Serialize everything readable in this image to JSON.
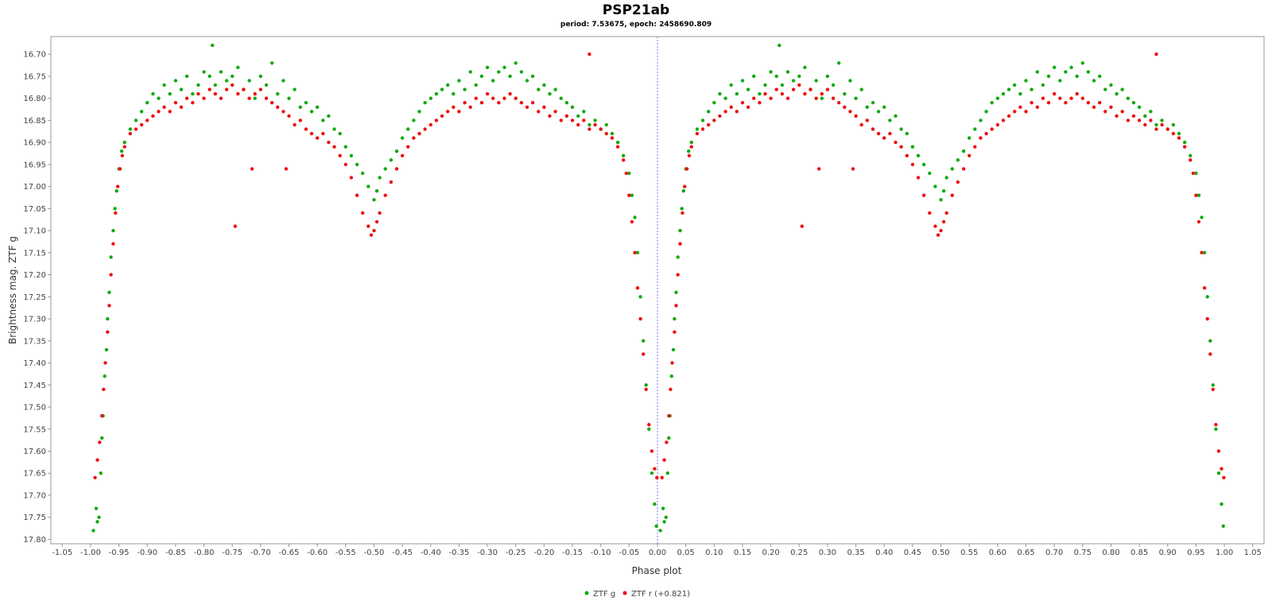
{
  "chart_data": {
    "type": "scatter",
    "title": "PSP21ab",
    "subtitle": "period: 7.53675, epoch: 2458690.809",
    "xlabel": "Phase plot",
    "ylabel": "Brightness mag. ZTF g",
    "xlim": [
      -1.07,
      1.07
    ],
    "ylim": [
      17.81,
      16.66
    ],
    "y_inverted": true,
    "x_ticks": [
      "-1.05",
      "-1.00",
      "-0.95",
      "-0.90",
      "-0.85",
      "-0.80",
      "-0.75",
      "-0.70",
      "-0.65",
      "-0.60",
      "-0.55",
      "-0.50",
      "-0.45",
      "-0.40",
      "-0.35",
      "-0.30",
      "-0.25",
      "-0.20",
      "-0.15",
      "-0.10",
      "-0.05",
      "0.00",
      "0.05",
      "0.10",
      "0.15",
      "0.20",
      "0.25",
      "0.30",
      "0.35",
      "0.40",
      "0.45",
      "0.50",
      "0.55",
      "0.60",
      "0.65",
      "0.70",
      "0.75",
      "0.80",
      "0.85",
      "0.90",
      "0.95",
      "1.00",
      "1.05"
    ],
    "y_ticks": [
      "16.70",
      "16.75",
      "16.80",
      "16.85",
      "16.90",
      "16.95",
      "17.00",
      "17.05",
      "17.10",
      "17.15",
      "17.20",
      "17.25",
      "17.30",
      "17.35",
      "17.40",
      "17.45",
      "17.50",
      "17.55",
      "17.60",
      "17.65",
      "17.70",
      "17.75",
      "17.80"
    ],
    "reference_line_x": 0.0,
    "grid": false,
    "legend_position": "bottom-center",
    "series": [
      {
        "name": "ZTF g",
        "color": "#11aa11",
        "phase_half": [
          [
            0.005,
            17.78
          ],
          [
            0.01,
            17.73
          ],
          [
            0.012,
            17.76
          ],
          [
            0.015,
            17.75
          ],
          [
            0.018,
            17.65
          ],
          [
            0.02,
            17.57
          ],
          [
            0.022,
            17.52
          ],
          [
            0.025,
            17.43
          ],
          [
            0.028,
            17.37
          ],
          [
            0.03,
            17.3
          ],
          [
            0.033,
            17.24
          ],
          [
            0.036,
            17.16
          ],
          [
            0.04,
            17.1
          ],
          [
            0.043,
            17.05
          ],
          [
            0.046,
            17.01
          ],
          [
            0.05,
            16.96
          ],
          [
            0.055,
            16.92
          ],
          [
            0.06,
            16.9
          ],
          [
            0.07,
            16.87
          ],
          [
            0.08,
            16.85
          ],
          [
            0.09,
            16.83
          ],
          [
            0.1,
            16.81
          ],
          [
            0.11,
            16.79
          ],
          [
            0.12,
            16.8
          ],
          [
            0.13,
            16.77
          ],
          [
            0.14,
            16.79
          ],
          [
            0.15,
            16.76
          ],
          [
            0.16,
            16.78
          ],
          [
            0.17,
            16.75
          ],
          [
            0.18,
            16.79
          ],
          [
            0.19,
            16.77
          ],
          [
            0.2,
            16.74
          ],
          [
            0.21,
            16.75
          ],
          [
            0.22,
            16.77
          ],
          [
            0.215,
            16.68
          ],
          [
            0.23,
            16.74
          ],
          [
            0.24,
            16.76
          ],
          [
            0.25,
            16.75
          ],
          [
            0.26,
            16.73
          ],
          [
            0.27,
            16.78
          ],
          [
            0.28,
            16.76
          ],
          [
            0.29,
            16.8
          ],
          [
            0.3,
            16.75
          ],
          [
            0.31,
            16.77
          ],
          [
            0.32,
            16.72
          ],
          [
            0.33,
            16.79
          ],
          [
            0.34,
            16.76
          ],
          [
            0.35,
            16.8
          ],
          [
            0.36,
            16.78
          ],
          [
            0.37,
            16.82
          ],
          [
            0.38,
            16.81
          ],
          [
            0.39,
            16.83
          ],
          [
            0.4,
            16.82
          ],
          [
            0.41,
            16.85
          ],
          [
            0.42,
            16.84
          ],
          [
            0.43,
            16.87
          ],
          [
            0.44,
            16.88
          ],
          [
            0.45,
            16.91
          ],
          [
            0.46,
            16.93
          ],
          [
            0.47,
            16.95
          ],
          [
            0.48,
            16.97
          ],
          [
            0.49,
            17.0
          ],
          [
            0.5,
            17.03
          ],
          [
            0.505,
            17.01
          ],
          [
            0.51,
            16.98
          ],
          [
            0.52,
            16.96
          ],
          [
            0.53,
            16.94
          ],
          [
            0.54,
            16.92
          ],
          [
            0.55,
            16.89
          ],
          [
            0.56,
            16.87
          ],
          [
            0.57,
            16.85
          ],
          [
            0.58,
            16.83
          ],
          [
            0.59,
            16.81
          ],
          [
            0.6,
            16.8
          ],
          [
            0.61,
            16.79
          ],
          [
            0.62,
            16.78
          ],
          [
            0.63,
            16.77
          ],
          [
            0.64,
            16.79
          ],
          [
            0.65,
            16.76
          ],
          [
            0.66,
            16.78
          ],
          [
            0.67,
            16.74
          ],
          [
            0.68,
            16.77
          ],
          [
            0.69,
            16.75
          ],
          [
            0.7,
            16.73
          ],
          [
            0.71,
            16.76
          ],
          [
            0.72,
            16.74
          ],
          [
            0.73,
            16.73
          ],
          [
            0.74,
            16.75
          ],
          [
            0.75,
            16.72
          ],
          [
            0.76,
            16.74
          ],
          [
            0.77,
            16.76
          ],
          [
            0.78,
            16.75
          ],
          [
            0.79,
            16.78
          ],
          [
            0.8,
            16.77
          ],
          [
            0.81,
            16.79
          ],
          [
            0.82,
            16.78
          ],
          [
            0.83,
            16.8
          ],
          [
            0.84,
            16.81
          ],
          [
            0.85,
            16.82
          ],
          [
            0.86,
            16.84
          ],
          [
            0.87,
            16.83
          ],
          [
            0.88,
            16.86
          ],
          [
            0.89,
            16.85
          ],
          [
            0.9,
            16.87
          ],
          [
            0.91,
            16.86
          ],
          [
            0.92,
            16.88
          ],
          [
            0.93,
            16.9
          ],
          [
            0.94,
            16.93
          ],
          [
            0.95,
            16.97
          ],
          [
            0.955,
            17.02
          ],
          [
            0.96,
            17.07
          ],
          [
            0.965,
            17.15
          ],
          [
            0.97,
            17.25
          ],
          [
            0.975,
            17.35
          ],
          [
            0.98,
            17.45
          ],
          [
            0.985,
            17.55
          ],
          [
            0.99,
            17.65
          ],
          [
            0.995,
            17.72
          ],
          [
            0.998,
            17.77
          ]
        ]
      },
      {
        "name": "ZTF r (+0.821)",
        "color": "#ee1111",
        "phase_half": [
          [
            0.008,
            17.66
          ],
          [
            0.012,
            17.62
          ],
          [
            0.016,
            17.58
          ],
          [
            0.02,
            17.52
          ],
          [
            0.023,
            17.46
          ],
          [
            0.026,
            17.4
          ],
          [
            0.03,
            17.33
          ],
          [
            0.033,
            17.27
          ],
          [
            0.036,
            17.2
          ],
          [
            0.04,
            17.13
          ],
          [
            0.044,
            17.06
          ],
          [
            0.048,
            17.0
          ],
          [
            0.052,
            16.96
          ],
          [
            0.056,
            16.93
          ],
          [
            0.06,
            16.91
          ],
          [
            0.07,
            16.88
          ],
          [
            0.08,
            16.87
          ],
          [
            0.09,
            16.86
          ],
          [
            0.1,
            16.85
          ],
          [
            0.11,
            16.84
          ],
          [
            0.12,
            16.83
          ],
          [
            0.13,
            16.82
          ],
          [
            0.14,
            16.83
          ],
          [
            0.15,
            16.81
          ],
          [
            0.16,
            16.82
          ],
          [
            0.17,
            16.8
          ],
          [
            0.18,
            16.81
          ],
          [
            0.19,
            16.79
          ],
          [
            0.2,
            16.8
          ],
          [
            0.21,
            16.78
          ],
          [
            0.22,
            16.79
          ],
          [
            0.23,
            16.8
          ],
          [
            0.24,
            16.78
          ],
          [
            0.25,
            16.77
          ],
          [
            0.26,
            16.79
          ],
          [
            0.27,
            16.78
          ],
          [
            0.28,
            16.8
          ],
          [
            0.29,
            16.79
          ],
          [
            0.3,
            16.78
          ],
          [
            0.31,
            16.8
          ],
          [
            0.32,
            16.81
          ],
          [
            0.33,
            16.82
          ],
          [
            0.34,
            16.83
          ],
          [
            0.35,
            16.84
          ],
          [
            0.36,
            16.86
          ],
          [
            0.37,
            16.85
          ],
          [
            0.38,
            16.87
          ],
          [
            0.39,
            16.88
          ],
          [
            0.4,
            16.89
          ],
          [
            0.41,
            16.88
          ],
          [
            0.42,
            16.9
          ],
          [
            0.43,
            16.91
          ],
          [
            0.44,
            16.93
          ],
          [
            0.45,
            16.95
          ],
          [
            0.46,
            16.98
          ],
          [
            0.47,
            17.02
          ],
          [
            0.48,
            17.06
          ],
          [
            0.49,
            17.09
          ],
          [
            0.495,
            17.11
          ],
          [
            0.5,
            17.1
          ],
          [
            0.505,
            17.08
          ],
          [
            0.51,
            17.06
          ],
          [
            0.52,
            17.02
          ],
          [
            0.53,
            16.99
          ],
          [
            0.54,
            16.96
          ],
          [
            0.55,
            16.93
          ],
          [
            0.56,
            16.91
          ],
          [
            0.57,
            16.89
          ],
          [
            0.58,
            16.88
          ],
          [
            0.59,
            16.87
          ],
          [
            0.6,
            16.86
          ],
          [
            0.61,
            16.85
          ],
          [
            0.62,
            16.84
          ],
          [
            0.63,
            16.83
          ],
          [
            0.64,
            16.82
          ],
          [
            0.65,
            16.83
          ],
          [
            0.66,
            16.81
          ],
          [
            0.67,
            16.82
          ],
          [
            0.68,
            16.8
          ],
          [
            0.69,
            16.81
          ],
          [
            0.7,
            16.79
          ],
          [
            0.71,
            16.8
          ],
          [
            0.72,
            16.81
          ],
          [
            0.73,
            16.8
          ],
          [
            0.74,
            16.79
          ],
          [
            0.75,
            16.8
          ],
          [
            0.76,
            16.81
          ],
          [
            0.77,
            16.82
          ],
          [
            0.78,
            16.81
          ],
          [
            0.79,
            16.83
          ],
          [
            0.8,
            16.82
          ],
          [
            0.81,
            16.84
          ],
          [
            0.82,
            16.83
          ],
          [
            0.83,
            16.85
          ],
          [
            0.84,
            16.84
          ],
          [
            0.85,
            16.85
          ],
          [
            0.86,
            16.86
          ],
          [
            0.87,
            16.85
          ],
          [
            0.88,
            16.87
          ],
          [
            0.89,
            16.86
          ],
          [
            0.9,
            16.87
          ],
          [
            0.91,
            16.88
          ],
          [
            0.92,
            16.89
          ],
          [
            0.93,
            16.91
          ],
          [
            0.94,
            16.94
          ],
          [
            0.945,
            16.97
          ],
          [
            0.95,
            17.02
          ],
          [
            0.955,
            17.08
          ],
          [
            0.96,
            17.15
          ],
          [
            0.965,
            17.23
          ],
          [
            0.97,
            17.3
          ],
          [
            0.975,
            17.38
          ],
          [
            0.98,
            17.46
          ],
          [
            0.985,
            17.54
          ],
          [
            0.99,
            17.6
          ],
          [
            0.995,
            17.64
          ],
          [
            0.999,
            17.66
          ],
          [
            0.255,
            17.09
          ],
          [
            0.285,
            16.96
          ],
          [
            0.345,
            16.96
          ],
          [
            0.88,
            16.7
          ]
        ]
      }
    ]
  }
}
